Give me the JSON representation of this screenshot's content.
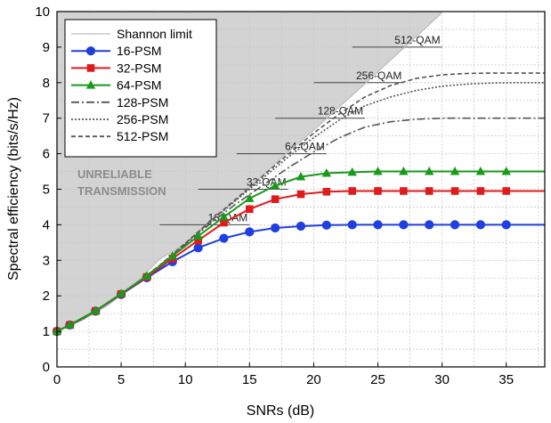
{
  "chart_data": {
    "type": "line",
    "title": "",
    "xlabel": "SNRs (dB)",
    "ylabel": "Spectral efficiency (bits/s/Hz)",
    "xlim": [
      0,
      38
    ],
    "ylim": [
      0,
      10
    ],
    "xticks": [
      0,
      5,
      10,
      15,
      20,
      25,
      30,
      35
    ],
    "yticks": [
      0,
      1,
      2,
      3,
      4,
      5,
      6,
      7,
      8,
      9,
      10
    ],
    "grid": true,
    "legend_position": "top-left",
    "shaded_region_label": [
      "UNRELIABLE",
      "TRANSMISSION"
    ],
    "shannon_limit": {
      "name": "Shannon limit",
      "color": "#bdbdbd",
      "x": [
        0,
        2,
        4,
        6,
        8,
        10,
        12,
        14,
        16,
        18,
        20,
        22,
        24,
        26,
        28,
        30
      ],
      "values": [
        1.0,
        1.32,
        1.74,
        2.32,
        3.03,
        3.46,
        4.09,
        4.71,
        5.38,
        6.05,
        6.66,
        7.32,
        7.97,
        8.64,
        9.3,
        9.97
      ]
    },
    "qam_levels": [
      {
        "label": "16-QAM",
        "y": 4,
        "x_start": 8,
        "x_end": 15
      },
      {
        "label": "32-QAM",
        "y": 5,
        "x_start": 11,
        "x_end": 18
      },
      {
        "label": "64-QAM",
        "y": 6,
        "x_start": 14,
        "x_end": 21
      },
      {
        "label": "128-QAM",
        "y": 7,
        "x_start": 17,
        "x_end": 24
      },
      {
        "label": "256-QAM",
        "y": 8,
        "x_start": 20,
        "x_end": 27
      },
      {
        "label": "512-QAM",
        "y": 9,
        "x_start": 23,
        "x_end": 30
      }
    ],
    "series": [
      {
        "name": "16-PSM",
        "color": "#1f3fe0",
        "marker": "circle",
        "dash": "",
        "x": [
          0,
          1,
          3,
          5,
          7,
          9,
          11,
          13,
          15,
          17,
          19,
          21,
          23,
          25,
          27,
          29,
          31,
          33,
          35,
          37,
          38
        ],
        "values": [
          1.0,
          1.18,
          1.57,
          2.04,
          2.51,
          2.96,
          3.35,
          3.62,
          3.8,
          3.91,
          3.96,
          3.99,
          4.0,
          4.0,
          4.0,
          4.0,
          4.0,
          4.0,
          4.0,
          4.0,
          4.0
        ]
      },
      {
        "name": "32-PSM",
        "color": "#e01b1b",
        "marker": "square",
        "dash": "",
        "x": [
          0,
          1,
          3,
          5,
          7,
          9,
          11,
          13,
          15,
          17,
          19,
          21,
          23,
          25,
          27,
          29,
          31,
          33,
          35,
          37,
          38
        ],
        "values": [
          1.0,
          1.18,
          1.57,
          2.05,
          2.53,
          3.05,
          3.56,
          4.06,
          4.44,
          4.72,
          4.86,
          4.93,
          4.95,
          4.95,
          4.95,
          4.95,
          4.95,
          4.95,
          4.95,
          4.95,
          4.95
        ]
      },
      {
        "name": "64-PSM",
        "color": "#1a9a1a",
        "marker": "triangle",
        "dash": "",
        "x": [
          0,
          1,
          3,
          5,
          7,
          9,
          11,
          13,
          15,
          17,
          19,
          21,
          23,
          25,
          27,
          29,
          31,
          33,
          35,
          37,
          38
        ],
        "values": [
          1.0,
          1.18,
          1.58,
          2.06,
          2.56,
          3.12,
          3.68,
          4.22,
          4.74,
          5.1,
          5.35,
          5.45,
          5.48,
          5.5,
          5.5,
          5.5,
          5.5,
          5.5,
          5.5,
          5.5,
          5.5
        ]
      },
      {
        "name": "128-PSM",
        "color": "#555555",
        "marker": "none",
        "dash": "9,3,2,3",
        "x": [
          0,
          2,
          4,
          6,
          8,
          10,
          12,
          14,
          16,
          18,
          20,
          22,
          24,
          26,
          28,
          30,
          32,
          34,
          36,
          38
        ],
        "values": [
          1.0,
          1.35,
          1.8,
          2.3,
          2.85,
          3.45,
          4.05,
          4.6,
          5.1,
          5.6,
          6.05,
          6.45,
          6.75,
          6.9,
          6.97,
          7.0,
          7.0,
          7.0,
          7.0,
          7.0
        ]
      },
      {
        "name": "256-PSM",
        "color": "#555555",
        "marker": "none",
        "dash": "2,2",
        "x": [
          0,
          2,
          4,
          6,
          8,
          10,
          12,
          14,
          16,
          18,
          20,
          22,
          24,
          26,
          28,
          30,
          32,
          34,
          36,
          38
        ],
        "values": [
          1.0,
          1.35,
          1.8,
          2.3,
          2.85,
          3.47,
          4.1,
          4.7,
          5.3,
          5.9,
          6.45,
          6.95,
          7.35,
          7.6,
          7.78,
          7.9,
          7.96,
          7.99,
          8.0,
          8.0
        ]
      },
      {
        "name": "512-PSM",
        "color": "#555555",
        "marker": "none",
        "dash": "5,3",
        "x": [
          0,
          2,
          4,
          6,
          8,
          10,
          12,
          14,
          16,
          18,
          20,
          22,
          24,
          26,
          28,
          30,
          32,
          34,
          36,
          38
        ],
        "values": [
          1.0,
          1.35,
          1.8,
          2.3,
          2.86,
          3.48,
          4.12,
          4.74,
          5.36,
          5.98,
          6.58,
          7.12,
          7.6,
          7.92,
          8.12,
          8.22,
          8.26,
          8.27,
          8.27,
          8.27
        ]
      }
    ]
  }
}
